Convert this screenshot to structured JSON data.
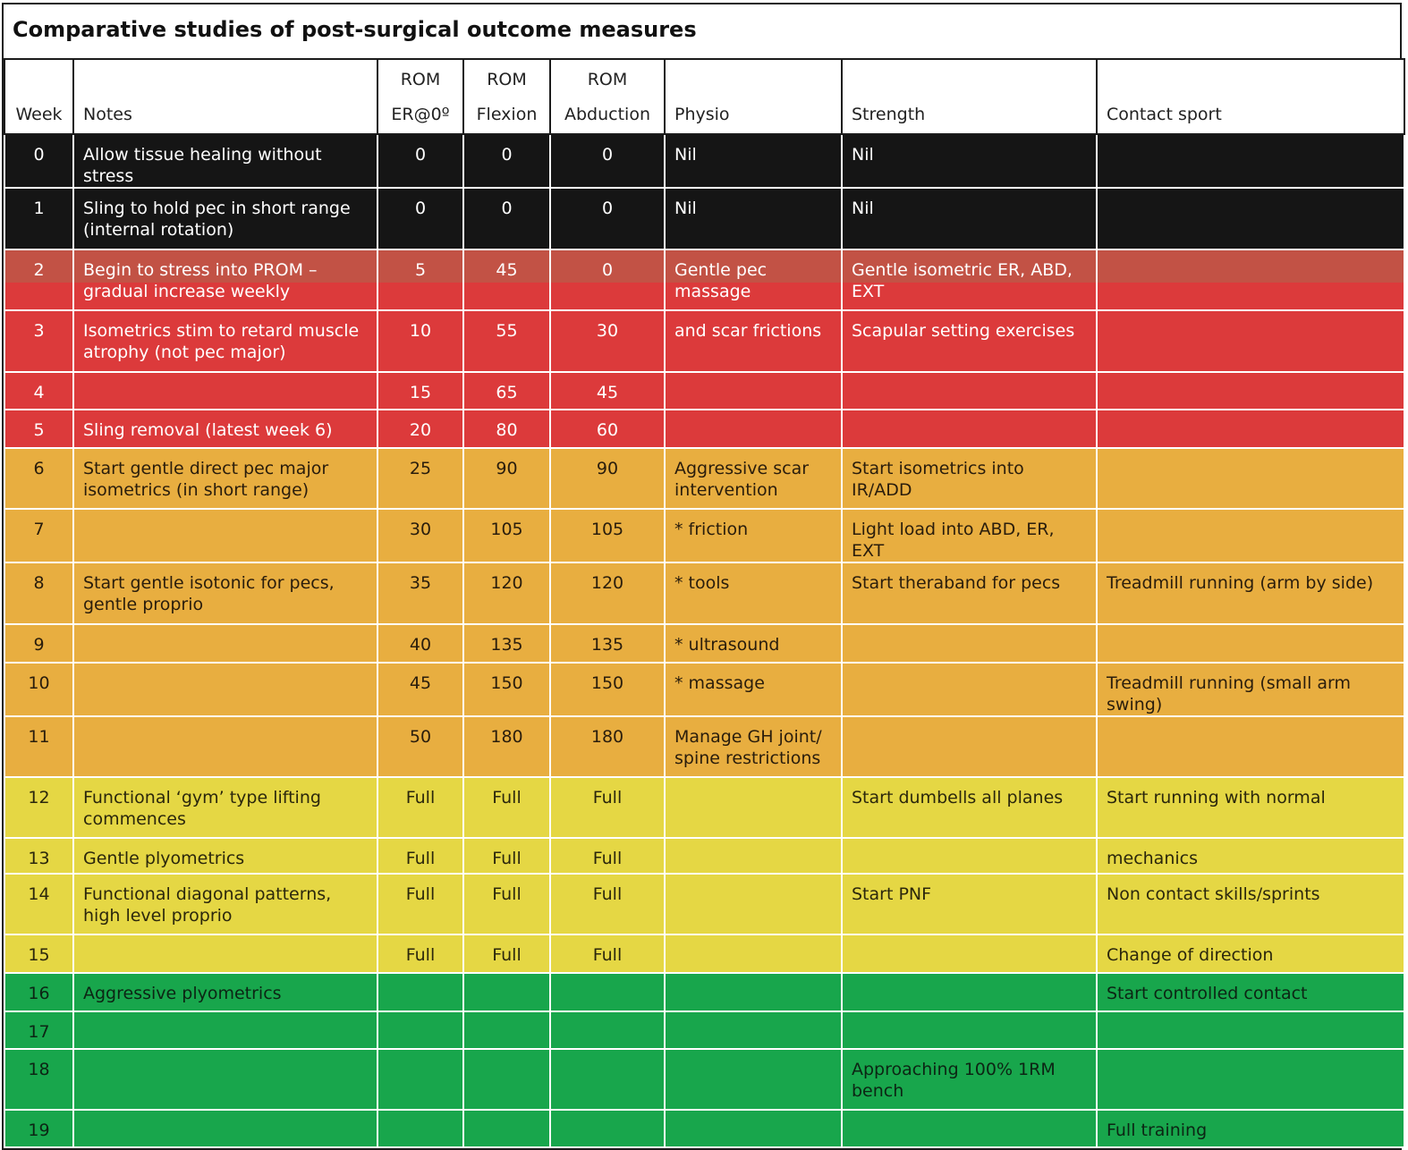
{
  "title": "Comparative studies of post-surgical outcome measures",
  "header": {
    "row1": [
      "",
      "",
      "ROM",
      "ROM",
      "ROM",
      "",
      "",
      ""
    ],
    "row2": [
      "Week",
      "Notes",
      "ER@0º",
      "Flexion",
      "Abduction",
      "Physio",
      "Strength",
      "Contact sport"
    ]
  },
  "colors": {
    "black": "#151515",
    "red": "#dc3a3b",
    "orange": "#e8ae40",
    "yellow": "#e5d744",
    "green": "#18a64c"
  },
  "rows": [
    {
      "week": "0",
      "notes": "Allow tissue healing without stress",
      "er": "0",
      "flexion": "0",
      "abduction": "0",
      "physio": "Nil",
      "strength": "Nil",
      "contact": ""
    },
    {
      "week": "1",
      "notes": "Sling to hold pec in short range (internal rotation)",
      "er": "0",
      "flexion": "0",
      "abduction": "0",
      "physio": "Nil",
      "strength": "Nil",
      "contact": ""
    },
    {
      "week": "2",
      "notes": "Begin to stress into PROM – gradual increase weekly",
      "er": "5",
      "flexion": "45",
      "abduction": "0",
      "physio": "Gentle pec massage",
      "strength": "Gentle isometric ER, ABD, EXT",
      "contact": ""
    },
    {
      "week": "3",
      "notes": "Isometrics stim to retard muscle atrophy (not pec major)",
      "er": "10",
      "flexion": "55",
      "abduction": "30",
      "physio": "and scar frictions",
      "strength": "Scapular setting exercises",
      "contact": ""
    },
    {
      "week": "4",
      "notes": "",
      "er": "15",
      "flexion": "65",
      "abduction": "45",
      "physio": "",
      "strength": "",
      "contact": ""
    },
    {
      "week": "5",
      "notes": "Sling removal (latest week 6)",
      "er": "20",
      "flexion": "80",
      "abduction": "60",
      "physio": "",
      "strength": "",
      "contact": ""
    },
    {
      "week": "6",
      "notes": "Start gentle direct pec major isometrics (in short range)",
      "er": "25",
      "flexion": "90",
      "abduction": "90",
      "physio": "Aggressive scar intervention",
      "strength": "Start isometrics into IR/ADD",
      "contact": ""
    },
    {
      "week": "7",
      "notes": "",
      "er": "30",
      "flexion": "105",
      "abduction": "105",
      "physio": "* friction",
      "strength": "Light load into ABD, ER, EXT",
      "contact": ""
    },
    {
      "week": "8",
      "notes": "Start gentle isotonic for pecs, gentle proprio",
      "er": "35",
      "flexion": "120",
      "abduction": "120",
      "physio": "* tools",
      "strength": "Start theraband for pecs",
      "contact": "Treadmill running (arm by side)"
    },
    {
      "week": "9",
      "notes": "",
      "er": "40",
      "flexion": "135",
      "abduction": "135",
      "physio": "* ultrasound",
      "strength": "",
      "contact": ""
    },
    {
      "week": "10",
      "notes": "",
      "er": "45",
      "flexion": "150",
      "abduction": "150",
      "physio": "* massage",
      "strength": "",
      "contact": "Treadmill running (small arm swing)"
    },
    {
      "week": "11",
      "notes": "",
      "er": "50",
      "flexion": "180",
      "abduction": "180",
      "physio": "Manage GH joint/ spine restrictions",
      "strength": "",
      "contact": ""
    },
    {
      "week": "12",
      "notes": "Functional ‘gym’ type lifting commences",
      "er": "Full",
      "flexion": "Full",
      "abduction": "Full",
      "physio": "",
      "strength": "Start dumbells all planes",
      "contact": "Start running with normal"
    },
    {
      "week": "13",
      "notes": "Gentle plyometrics",
      "er": "Full",
      "flexion": "Full",
      "abduction": "Full",
      "physio": "",
      "strength": "",
      "contact": "mechanics"
    },
    {
      "week": "14",
      "notes": "Functional diagonal patterns, high level proprio",
      "er": "Full",
      "flexion": "Full",
      "abduction": "Full",
      "physio": "",
      "strength": "Start PNF",
      "contact": "Non contact skills/sprints"
    },
    {
      "week": "15",
      "notes": "",
      "er": "Full",
      "flexion": "Full",
      "abduction": "Full",
      "physio": "",
      "strength": "",
      "contact": "Change of direction"
    },
    {
      "week": "16",
      "notes": "Aggressive plyometrics",
      "er": "",
      "flexion": "",
      "abduction": "",
      "physio": "",
      "strength": "",
      "contact": "Start controlled contact"
    },
    {
      "week": "17",
      "notes": "",
      "er": "",
      "flexion": "",
      "abduction": "",
      "physio": "",
      "strength": "",
      "contact": ""
    },
    {
      "week": "18",
      "notes": "",
      "er": "",
      "flexion": "",
      "abduction": "",
      "physio": "",
      "strength": "Approaching 100% 1RM bench",
      "contact": ""
    },
    {
      "week": "19",
      "notes": "",
      "er": "",
      "flexion": "",
      "abduction": "",
      "physio": "",
      "strength": "",
      "contact": "Full training"
    }
  ]
}
